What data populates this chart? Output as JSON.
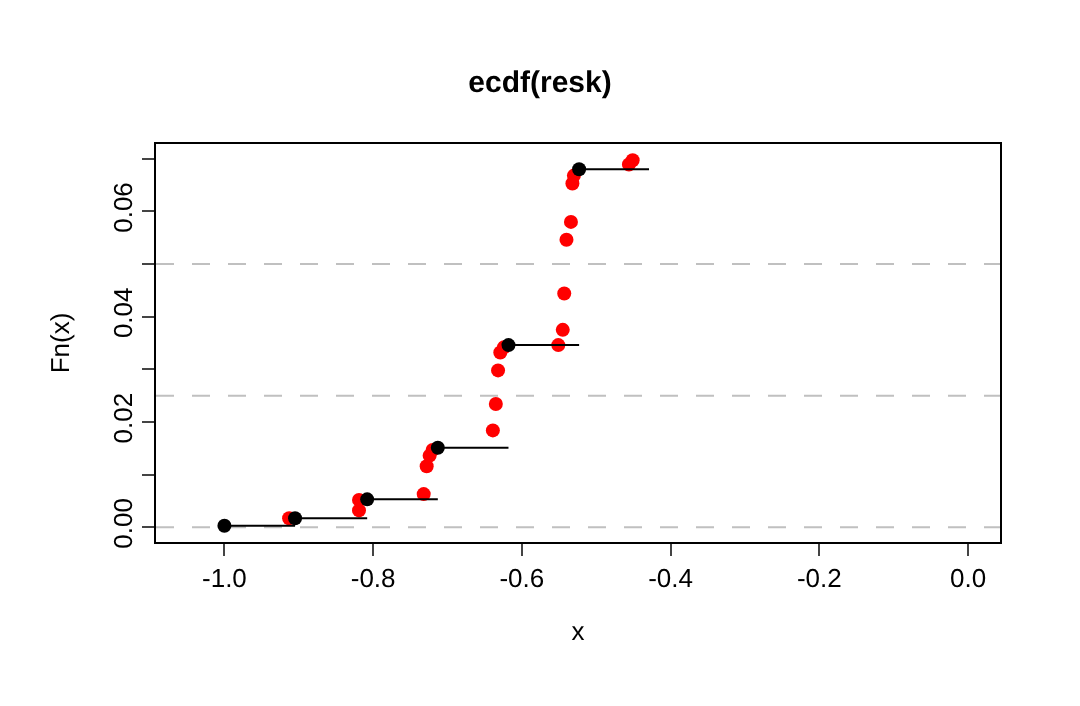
{
  "chart_data": {
    "type": "scatter",
    "title": "ecdf(resk)",
    "xlabel": "x",
    "ylabel": "Fn(x)",
    "xlim": [
      -1.092,
      0.043
    ],
    "ylim": [
      -0.0028,
      0.0728
    ],
    "xticks": [
      {
        "value": -1.0,
        "label": "-1.0"
      },
      {
        "value": -0.8,
        "label": "-0.8"
      },
      {
        "value": -0.6,
        "label": "-0.6"
      },
      {
        "value": -0.4,
        "label": "-0.4"
      },
      {
        "value": -0.2,
        "label": "-0.2"
      },
      {
        "value": 0.0,
        "label": "0.0"
      }
    ],
    "yticks": [
      {
        "value": 0.0,
        "label": "0.00"
      },
      {
        "value": 0.01,
        "label": null
      },
      {
        "value": 0.02,
        "label": "0.02"
      },
      {
        "value": 0.03,
        "label": null
      },
      {
        "value": 0.04,
        "label": "0.04"
      },
      {
        "value": 0.05,
        "label": null
      },
      {
        "value": 0.06,
        "label": "0.06"
      },
      {
        "value": 0.07,
        "label": null
      }
    ],
    "grid": false,
    "marker": "circle",
    "ref_lines": [
      {
        "axis": "y",
        "value": 0.0,
        "label": null,
        "color": "#c0c0c0",
        "line_style": "dashed"
      },
      {
        "axis": "y",
        "value": 0.025,
        "label": null,
        "color": "#c0c0c0",
        "line_style": "dashed"
      },
      {
        "axis": "y",
        "value": 0.05,
        "label": null,
        "color": "#c0c0c0",
        "line_style": "dashed"
      }
    ],
    "series": [
      {
        "type": "step",
        "color": "#000000",
        "x": [
          -1.0,
          -0.905,
          -0.808,
          -0.713,
          -0.618,
          -0.523,
          -0.429
        ],
        "values": [
          0.0003,
          0.0017,
          0.0053,
          0.0151,
          0.0346,
          0.068,
          0.068
        ]
      },
      {
        "color": "#ff0000",
        "x": [
          -0.913,
          -0.819,
          -0.819,
          -0.732,
          -0.728,
          -0.724,
          -0.72,
          -0.639,
          -0.635,
          -0.632,
          -0.629,
          -0.624,
          -0.551,
          -0.545,
          -0.543,
          -0.54,
          -0.534,
          -0.532,
          -0.53,
          -0.456,
          -0.451
        ],
        "values": [
          0.0017,
          0.0032,
          0.0052,
          0.0063,
          0.0116,
          0.0136,
          0.0147,
          0.0184,
          0.0234,
          0.0298,
          0.0332,
          0.0342,
          0.0346,
          0.0375,
          0.0444,
          0.0546,
          0.058,
          0.0653,
          0.0668,
          0.0689,
          0.0697
        ]
      }
    ]
  }
}
